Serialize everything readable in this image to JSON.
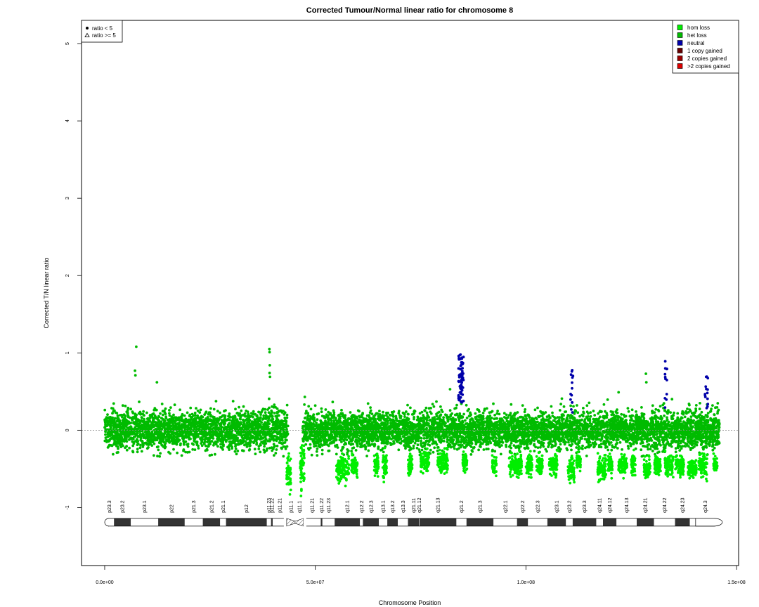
{
  "chart_data": {
    "type": "scatter",
    "title": "Corrected Tumour/Normal linear ratio for chromosome  8",
    "xlabel": "Chromosome Position",
    "ylabel": "Corrected T/N linear ratio",
    "xlim": [
      -5500000,
      150500000
    ],
    "ylim": [
      -1.75,
      5.3
    ],
    "xticks": [
      0,
      50000000,
      100000000,
      150000000
    ],
    "xtick_labels": [
      "0.0e+00",
      "5.0e+07",
      "1.0e+08",
      "1.5e+08"
    ],
    "yticks": [
      -1,
      0,
      1,
      2,
      3,
      4,
      5
    ],
    "ytick_labels": [
      "-1",
      "0",
      "1",
      "2",
      "3",
      "4",
      "5"
    ],
    "reference_line_y": 0,
    "shape_legend": {
      "position": "top-left",
      "entries": [
        {
          "symbol": "circle",
          "label": "ratio < 5"
        },
        {
          "symbol": "triangle",
          "label": "ratio >= 5"
        }
      ]
    },
    "color_legend": {
      "position": "top-right",
      "entries": [
        {
          "label": "hom loss",
          "color": "#00ee00"
        },
        {
          "label": "het loss",
          "color": "#00bb00"
        },
        {
          "label": "neutral",
          "color": "#0000aa"
        },
        {
          "label": "1 copy gained",
          "color": "#660000"
        },
        {
          "label": "2 copies gained",
          "color": "#990000"
        },
        {
          "label": ">2 copies gained",
          "color": "#dd0000"
        }
      ]
    },
    "bulk_segments": [
      {
        "start": 0,
        "end": 43500000,
        "center": 0.0,
        "spread": 0.12,
        "color": "#00bb00"
      },
      {
        "start": 47000000,
        "end": 146000000,
        "center": 0.0,
        "spread": 0.12,
        "color": "#00bb00"
      }
    ],
    "lower_clusters": [
      {
        "start": 43200000,
        "end": 44200000,
        "center": -0.55,
        "spread": 0.1,
        "color": "#00ee00"
      },
      {
        "start": 46400000,
        "end": 47400000,
        "center": -0.45,
        "spread": 0.15,
        "color": "#00ee00"
      },
      {
        "start": 55000000,
        "end": 58000000,
        "center": -0.5,
        "spread": 0.08,
        "color": "#00ee00"
      },
      {
        "start": 58500000,
        "end": 60000000,
        "center": -0.45,
        "spread": 0.06,
        "color": "#00ee00"
      },
      {
        "start": 64000000,
        "end": 65000000,
        "center": -0.45,
        "spread": 0.06,
        "color": "#00ee00"
      },
      {
        "start": 66000000,
        "end": 67000000,
        "center": -0.45,
        "spread": 0.08,
        "color": "#00ee00"
      },
      {
        "start": 72000000,
        "end": 73000000,
        "center": -0.45,
        "spread": 0.06,
        "color": "#00ee00"
      },
      {
        "start": 75000000,
        "end": 77000000,
        "center": -0.4,
        "spread": 0.06,
        "color": "#00ee00"
      },
      {
        "start": 79000000,
        "end": 81500000,
        "center": -0.4,
        "spread": 0.07,
        "color": "#00ee00"
      },
      {
        "start": 85000000,
        "end": 86000000,
        "center": -0.4,
        "spread": 0.06,
        "color": "#00ee00"
      },
      {
        "start": 92000000,
        "end": 93000000,
        "center": -0.45,
        "spread": 0.06,
        "color": "#00ee00"
      },
      {
        "start": 96000000,
        "end": 99000000,
        "center": -0.45,
        "spread": 0.07,
        "color": "#00ee00"
      },
      {
        "start": 100000000,
        "end": 101500000,
        "center": -0.45,
        "spread": 0.07,
        "color": "#00ee00"
      },
      {
        "start": 102500000,
        "end": 104000000,
        "center": -0.45,
        "spread": 0.06,
        "color": "#00ee00"
      },
      {
        "start": 105500000,
        "end": 107500000,
        "center": -0.45,
        "spread": 0.06,
        "color": "#00ee00"
      },
      {
        "start": 110000000,
        "end": 111500000,
        "center": -0.5,
        "spread": 0.07,
        "color": "#00ee00"
      },
      {
        "start": 112000000,
        "end": 113000000,
        "center": -0.4,
        "spread": 0.06,
        "color": "#00ee00"
      },
      {
        "start": 117000000,
        "end": 119000000,
        "center": -0.5,
        "spread": 0.07,
        "color": "#00ee00"
      },
      {
        "start": 119500000,
        "end": 120500000,
        "center": -0.45,
        "spread": 0.06,
        "color": "#00ee00"
      },
      {
        "start": 122000000,
        "end": 124000000,
        "center": -0.45,
        "spread": 0.06,
        "color": "#00ee00"
      },
      {
        "start": 125000000,
        "end": 126000000,
        "center": -0.45,
        "spread": 0.06,
        "color": "#00ee00"
      },
      {
        "start": 128000000,
        "end": 129500000,
        "center": -0.5,
        "spread": 0.06,
        "color": "#00ee00"
      },
      {
        "start": 130500000,
        "end": 132000000,
        "center": -0.45,
        "spread": 0.06,
        "color": "#00ee00"
      },
      {
        "start": 133000000,
        "end": 135000000,
        "center": -0.45,
        "spread": 0.07,
        "color": "#00ee00"
      },
      {
        "start": 135500000,
        "end": 137500000,
        "center": -0.45,
        "spread": 0.07,
        "color": "#00ee00"
      },
      {
        "start": 138500000,
        "end": 140500000,
        "center": -0.5,
        "spread": 0.06,
        "color": "#00ee00"
      },
      {
        "start": 141000000,
        "end": 143000000,
        "center": -0.45,
        "spread": 0.07,
        "color": "#00ee00"
      },
      {
        "start": 144500000,
        "end": 145500000,
        "center": -0.45,
        "spread": 0.05,
        "color": "#00ee00"
      }
    ],
    "neutral_clusters": [
      {
        "start": 84000000,
        "end": 85200000,
        "low": 0.35,
        "high": 1.0,
        "count": 70,
        "color": "#0000aa"
      },
      {
        "start": 110500000,
        "end": 111200000,
        "low": 0.2,
        "high": 0.82,
        "count": 14,
        "color": "#0000aa"
      },
      {
        "start": 133000000,
        "end": 133500000,
        "low": 0.25,
        "high": 0.92,
        "count": 12,
        "color": "#0000aa"
      },
      {
        "start": 142500000,
        "end": 143200000,
        "low": 0.2,
        "high": 0.7,
        "count": 14,
        "color": "#0000aa"
      }
    ],
    "outliers": [
      {
        "x": 7500000,
        "y": 1.08
      },
      {
        "x": 7200000,
        "y": 0.77
      },
      {
        "x": 7300000,
        "y": 0.71
      },
      {
        "x": 12400000,
        "y": 0.62
      },
      {
        "x": 39100000,
        "y": 1.05
      },
      {
        "x": 39150000,
        "y": 1.01
      },
      {
        "x": 39200000,
        "y": 0.84
      },
      {
        "x": 39150000,
        "y": 0.74
      },
      {
        "x": 39250000,
        "y": 0.69
      },
      {
        "x": 47500000,
        "y": 0.43
      },
      {
        "x": 82000000,
        "y": 0.53
      },
      {
        "x": 122000000,
        "y": 0.49
      },
      {
        "x": 128500000,
        "y": 0.73
      },
      {
        "x": 128600000,
        "y": 0.62
      },
      {
        "x": 43700000,
        "y": -0.7
      },
      {
        "x": 46600000,
        "y": -0.85
      },
      {
        "x": 46700000,
        "y": -0.78
      }
    ],
    "ideogram": {
      "length": 146300000,
      "centromere": 45200000,
      "bands": [
        {
          "name": "p23.3",
          "start": 0,
          "end": 2200000,
          "stain": "gneg"
        },
        {
          "name": "p23.2",
          "start": 2200000,
          "end": 6200000,
          "stain": "gpos"
        },
        {
          "name": "p23.1",
          "start": 6200000,
          "end": 12700000,
          "stain": "gneg"
        },
        {
          "name": "p22",
          "start": 12700000,
          "end": 19000000,
          "stain": "gpos"
        },
        {
          "name": "p21.3",
          "start": 19000000,
          "end": 23300000,
          "stain": "gneg"
        },
        {
          "name": "p21.2",
          "start": 23300000,
          "end": 27400000,
          "stain": "gpos"
        },
        {
          "name": "p21.1",
          "start": 27400000,
          "end": 28800000,
          "stain": "gneg"
        },
        {
          "name": "p12",
          "start": 28800000,
          "end": 38500000,
          "stain": "gpos"
        },
        {
          "name": "p11.23",
          "start": 38500000,
          "end": 39500000,
          "stain": "gneg"
        },
        {
          "name": "p11.22",
          "start": 39500000,
          "end": 39900000,
          "stain": "gpos"
        },
        {
          "name": "p11.21",
          "start": 39900000,
          "end": 43200000,
          "stain": "gneg"
        },
        {
          "name": "p11.1",
          "start": 43200000,
          "end": 45200000,
          "stain": "acen"
        },
        {
          "name": "q11.1",
          "start": 45200000,
          "end": 47200000,
          "stain": "acen"
        },
        {
          "name": "q11.21",
          "start": 47200000,
          "end": 51300000,
          "stain": "gneg"
        },
        {
          "name": "q11.22",
          "start": 51300000,
          "end": 51700000,
          "stain": "gpos"
        },
        {
          "name": "q11.23",
          "start": 51700000,
          "end": 54600000,
          "stain": "gneg"
        },
        {
          "name": "q12.1",
          "start": 54600000,
          "end": 60600000,
          "stain": "gpos"
        },
        {
          "name": "q12.2",
          "start": 60600000,
          "end": 61300000,
          "stain": "gneg"
        },
        {
          "name": "q12.3",
          "start": 61300000,
          "end": 65100000,
          "stain": "gpos"
        },
        {
          "name": "q13.1",
          "start": 65100000,
          "end": 67100000,
          "stain": "gneg"
        },
        {
          "name": "q13.2",
          "start": 67100000,
          "end": 69600000,
          "stain": "gpos"
        },
        {
          "name": "q13.3",
          "start": 69600000,
          "end": 72000000,
          "stain": "gneg"
        },
        {
          "name": "q21.11",
          "start": 72000000,
          "end": 74600000,
          "stain": "gpos"
        },
        {
          "name": "q21.12",
          "start": 74600000,
          "end": 74700000,
          "stain": "gneg"
        },
        {
          "name": "q21.13",
          "start": 74700000,
          "end": 83500000,
          "stain": "gpos"
        },
        {
          "name": "q21.2",
          "start": 83500000,
          "end": 85900000,
          "stain": "gneg"
        },
        {
          "name": "q21.3",
          "start": 85900000,
          "end": 92300000,
          "stain": "gpos"
        },
        {
          "name": "q22.1",
          "start": 92300000,
          "end": 97900000,
          "stain": "gneg"
        },
        {
          "name": "q22.2",
          "start": 97900000,
          "end": 100500000,
          "stain": "gpos"
        },
        {
          "name": "q22.3",
          "start": 100500000,
          "end": 105100000,
          "stain": "gneg"
        },
        {
          "name": "q23.1",
          "start": 105100000,
          "end": 109500000,
          "stain": "gpos"
        },
        {
          "name": "q23.2",
          "start": 109500000,
          "end": 111100000,
          "stain": "gneg"
        },
        {
          "name": "q23.3",
          "start": 111100000,
          "end": 116700000,
          "stain": "gpos"
        },
        {
          "name": "q24.11",
          "start": 116700000,
          "end": 118300000,
          "stain": "gneg"
        },
        {
          "name": "q24.12",
          "start": 118300000,
          "end": 121500000,
          "stain": "gpos"
        },
        {
          "name": "q24.13",
          "start": 121500000,
          "end": 126300000,
          "stain": "gneg"
        },
        {
          "name": "q24.21",
          "start": 126300000,
          "end": 130400000,
          "stain": "gpos"
        },
        {
          "name": "q24.22",
          "start": 130400000,
          "end": 135400000,
          "stain": "gneg"
        },
        {
          "name": "q24.23",
          "start": 135400000,
          "end": 138900000,
          "stain": "gpos"
        },
        {
          "name": "q24.3",
          "start": 138900000,
          "end": 146300000,
          "stain": "gneg"
        }
      ]
    }
  }
}
